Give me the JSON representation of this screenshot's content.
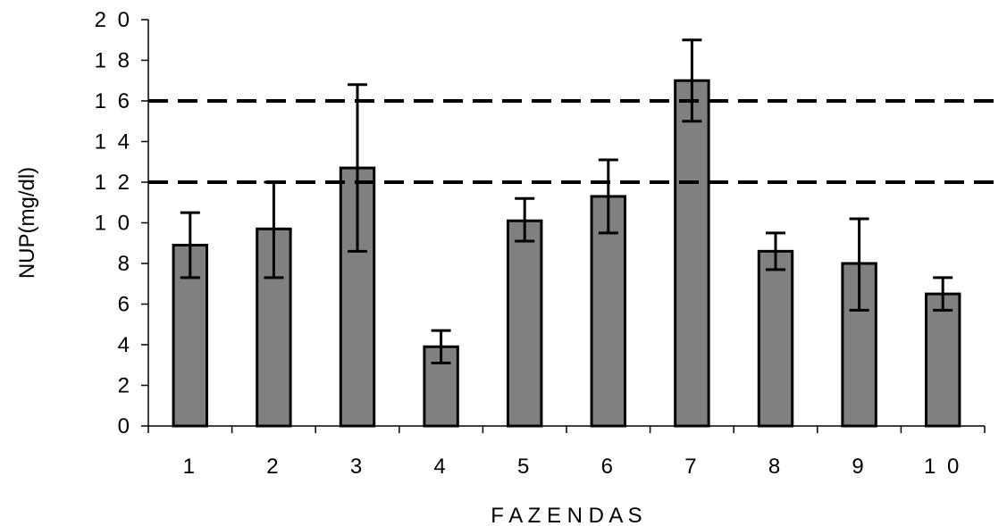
{
  "chart_data": {
    "type": "bar",
    "xlabel": "F A Z E N D A S",
    "ylabel": "NUP(mg/dl)",
    "ylim": [
      0,
      20
    ],
    "y_ticks": [
      "0",
      "2",
      "4",
      "6",
      "8",
      "1 0",
      "1 2",
      "1 4",
      "1 6",
      "1 8",
      "2 0"
    ],
    "categories": [
      "1",
      "2",
      "3",
      "4",
      "5",
      "6",
      "7",
      "8",
      "9",
      "1 0"
    ],
    "values": [
      8.9,
      9.7,
      12.7,
      3.9,
      10.1,
      11.3,
      17.0,
      8.6,
      8.0,
      6.5
    ],
    "error_low": [
      7.3,
      7.3,
      8.6,
      3.1,
      9.1,
      9.5,
      15.0,
      7.7,
      5.7,
      5.7
    ],
    "error_high": [
      10.5,
      12.0,
      16.8,
      4.7,
      11.2,
      13.1,
      19.0,
      9.5,
      10.2,
      7.3
    ],
    "reference_lines": [
      12,
      16
    ],
    "grid": false,
    "colors": {
      "bar_fill": "#808080",
      "bar_stroke": "#000000",
      "line": "#000000"
    }
  }
}
